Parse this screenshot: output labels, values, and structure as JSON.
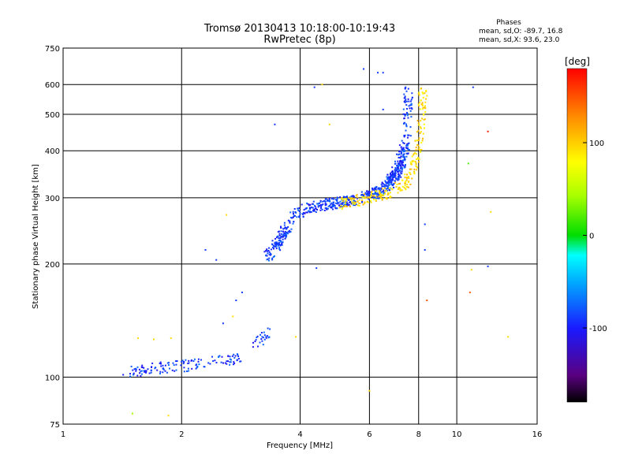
{
  "chart_data": {
    "type": "scatter",
    "title": "Tromsø 20130413 10:18:00-10:19:43",
    "subtitle": "RwPretec (8p)",
    "stats": {
      "heading": "Phases",
      "o_mode": "mean, sd,O: -89.7, 16.8",
      "x_mode": "mean, sd,X:  93.6, 23.0"
    },
    "xlabel": "Frequency [MHz]",
    "ylabel": "Stationary phase Virtual Height [km]",
    "x_scale": "log",
    "y_scale": "log",
    "xlim": [
      1,
      16
    ],
    "ylim": [
      75,
      750
    ],
    "x_ticks": [
      1,
      2,
      4,
      6,
      8,
      10,
      16
    ],
    "y_ticks": [
      75,
      100,
      200,
      300,
      400,
      500,
      600,
      750
    ],
    "grid": true,
    "colorbar": {
      "label": "[deg]",
      "range": [
        -180,
        180
      ],
      "ticks": [
        100,
        0,
        -100
      ]
    },
    "series": [
      {
        "mode": "O",
        "phase_deg": -90,
        "segments": [
          {
            "x": [
              1.44,
              1.62,
              1.8,
              2.0,
              2.3,
              2.6,
              2.8
            ],
            "y": [
              103,
              105,
              106,
              107,
              109,
              111,
              112
            ],
            "count": 140
          },
          {
            "x": [
              3.1,
              3.25,
              3.4
            ],
            "y": [
              123,
              128,
              134
            ],
            "count": 25
          },
          {
            "x": [
              3.3,
              3.55,
              3.75
            ],
            "y": [
              210,
              230,
              255
            ],
            "count": 130
          },
          {
            "x": [
              3.8,
              4.2,
              4.6,
              5.1,
              5.5
            ],
            "y": [
              265,
              282,
              288,
              292,
              296
            ],
            "count": 220
          },
          {
            "x": [
              5.8,
              6.3,
              6.8,
              7.2,
              7.45,
              7.55
            ],
            "y": [
              300,
              310,
              330,
              360,
              420,
              590
            ],
            "count": 340
          },
          {
            "x": [
              6.6,
              7.0,
              7.3
            ],
            "y": [
              320,
              350,
              400
            ],
            "count": 80
          }
        ]
      },
      {
        "mode": "X",
        "phase_deg": 95,
        "segments": [
          {
            "x": [
              5.0,
              5.6,
              6.2,
              6.9,
              7.5,
              7.9,
              8.1,
              8.2
            ],
            "y": [
              288,
              295,
              302,
              312,
              330,
              380,
              460,
              580
            ],
            "count": 260
          }
        ]
      }
    ],
    "scattered_points": [
      {
        "x": 1.55,
        "y": 127,
        "phase": 95
      },
      {
        "x": 1.7,
        "y": 126,
        "phase": 95
      },
      {
        "x": 1.88,
        "y": 127,
        "phase": 95
      },
      {
        "x": 2.6,
        "y": 270,
        "phase": 95
      },
      {
        "x": 4.55,
        "y": 600,
        "phase": 95
      },
      {
        "x": 4.75,
        "y": 470,
        "phase": 95
      },
      {
        "x": 6.0,
        "y": 92,
        "phase": 95
      },
      {
        "x": 4.35,
        "y": 590,
        "phase": -90
      },
      {
        "x": 3.45,
        "y": 470,
        "phase": -90
      },
      {
        "x": 5.8,
        "y": 660,
        "phase": -90
      },
      {
        "x": 6.3,
        "y": 645,
        "phase": -90
      },
      {
        "x": 6.5,
        "y": 645,
        "phase": -90
      },
      {
        "x": 6.5,
        "y": 515,
        "phase": -90
      },
      {
        "x": 8.3,
        "y": 255,
        "phase": -90
      },
      {
        "x": 8.3,
        "y": 218,
        "phase": -90
      },
      {
        "x": 11.0,
        "y": 590,
        "phase": -90
      },
      {
        "x": 12.0,
        "y": 197,
        "phase": -90
      },
      {
        "x": 10.7,
        "y": 370,
        "phase": 20
      },
      {
        "x": 12.0,
        "y": 450,
        "phase": 170
      },
      {
        "x": 8.4,
        "y": 160,
        "phase": 150
      },
      {
        "x": 12.2,
        "y": 275,
        "phase": 95
      },
      {
        "x": 13.5,
        "y": 128,
        "phase": 95
      },
      {
        "x": 10.8,
        "y": 168,
        "phase": 150
      },
      {
        "x": 10.9,
        "y": 193,
        "phase": 95
      },
      {
        "x": 1.5,
        "y": 80,
        "phase": 40
      },
      {
        "x": 1.85,
        "y": 79,
        "phase": 95
      },
      {
        "x": 2.85,
        "y": 168,
        "phase": -90
      },
      {
        "x": 2.75,
        "y": 160,
        "phase": -90
      },
      {
        "x": 2.3,
        "y": 218,
        "phase": -90
      },
      {
        "x": 2.45,
        "y": 205,
        "phase": -90
      },
      {
        "x": 4.4,
        "y": 195,
        "phase": -90
      },
      {
        "x": 3.9,
        "y": 128,
        "phase": 95
      },
      {
        "x": 2.55,
        "y": 139,
        "phase": -90
      },
      {
        "x": 2.7,
        "y": 145,
        "phase": 95
      }
    ]
  }
}
